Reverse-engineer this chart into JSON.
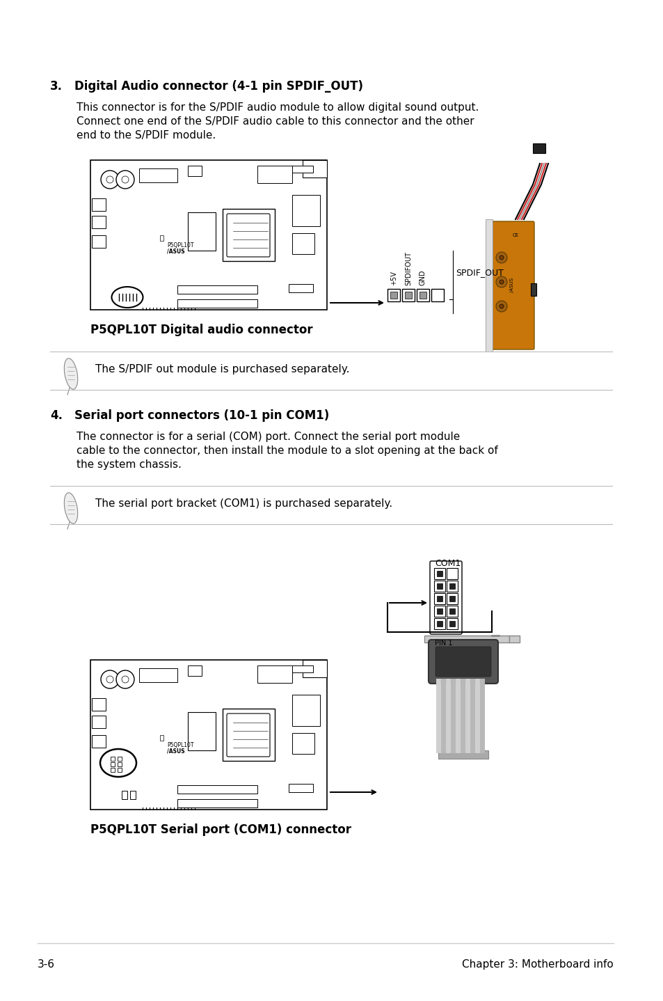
{
  "page_bg": "#ffffff",
  "section3_heading": "3.    Digital Audio connector (4-1 pin SPDIF_OUT)",
  "section3_body": [
    "This connector is for the S/PDIF audio module to allow digital sound output.",
    "Connect one end of the S/PDIF audio cable to this connector and the other",
    "end to the S/PDIF module."
  ],
  "section3_caption": "P5QPL10T Digital audio connector",
  "note1_text": "The S/PDIF out module is purchased separately.",
  "section4_heading": "4.    Serial port connectors (10-1 pin COM1)",
  "section4_body": [
    "The connector is for a serial (COM) port. Connect the serial port module",
    "cable to the connector, then install the module to a slot opening at the back of",
    "the system chassis."
  ],
  "note2_text": "The serial port bracket (COM1) is purchased separately.",
  "section4_caption": "P5QPL10T Serial port (COM1) connector",
  "footer_left": "3-6",
  "footer_right": "Chapter 3: Motherboard info",
  "spdif_out_label": "SPDIF_OUT",
  "spdif_pin_labels": [
    "+5V",
    "SPDIFOUT",
    "GND"
  ],
  "com1_label": "COM1",
  "pin1_label": "PIN 1"
}
